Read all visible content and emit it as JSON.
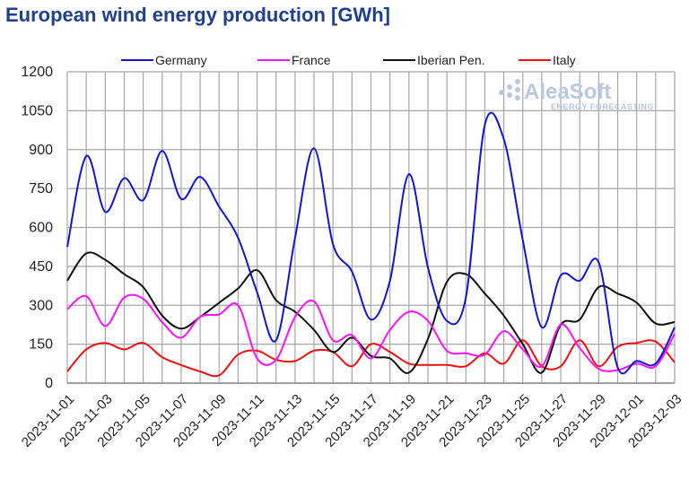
{
  "chart_data": {
    "type": "line",
    "title": "European wind energy production [GWh]",
    "ylim": [
      0,
      1200
    ],
    "yticks": [
      0,
      150,
      300,
      450,
      600,
      750,
      900,
      1050,
      1200
    ],
    "xlim": [
      "2023-11-01",
      "2023-12-03"
    ],
    "xtick_labels": [
      "2023-11-01",
      "2023-11-03",
      "2023-11-05",
      "2023-11-07",
      "2023-11-09",
      "2023-11-11",
      "2023-11-13",
      "2023-11-15",
      "2023-11-17",
      "2023-11-19",
      "2023-11-21",
      "2023-11-23",
      "2023-11-25",
      "2023-11-27",
      "2023-11-29",
      "2023-12-01",
      "2023-12-03"
    ],
    "grid": true,
    "legend_position": "top",
    "x": [
      "2023-11-01",
      "2023-11-02",
      "2023-11-03",
      "2023-11-04",
      "2023-11-05",
      "2023-11-06",
      "2023-11-07",
      "2023-11-08",
      "2023-11-09",
      "2023-11-10",
      "2023-11-11",
      "2023-11-12",
      "2023-11-13",
      "2023-11-14",
      "2023-11-15",
      "2023-11-16",
      "2023-11-17",
      "2023-11-18",
      "2023-11-19",
      "2023-11-20",
      "2023-11-21",
      "2023-11-22",
      "2023-11-23",
      "2023-11-24",
      "2023-11-25",
      "2023-11-26",
      "2023-11-27",
      "2023-11-28",
      "2023-11-29",
      "2023-11-30",
      "2023-12-01",
      "2023-12-02",
      "2023-12-03"
    ],
    "series": [
      {
        "name": "Germany",
        "color": "#1414d2",
        "values": [
          525,
          875,
          660,
          790,
          705,
          895,
          710,
          795,
          680,
          560,
          350,
          165,
          560,
          905,
          535,
          430,
          245,
          395,
          805,
          445,
          240,
          330,
          995,
          940,
          550,
          215,
          415,
          395,
          465,
          60,
          85,
          75,
          215
        ]
      },
      {
        "name": "France",
        "color": "#ff10ff",
        "values": [
          285,
          335,
          220,
          330,
          325,
          235,
          175,
          255,
          265,
          300,
          95,
          90,
          255,
          315,
          165,
          185,
          95,
          205,
          275,
          240,
          125,
          115,
          110,
          200,
          130,
          65,
          225,
          135,
          55,
          50,
          75,
          65,
          190
        ]
      },
      {
        "name": "Iberian Pen.",
        "color": "#111111",
        "values": [
          395,
          500,
          475,
          420,
          370,
          260,
          210,
          255,
          310,
          365,
          435,
          320,
          275,
          205,
          120,
          175,
          105,
          95,
          40,
          170,
          390,
          420,
          345,
          260,
          150,
          40,
          225,
          245,
          370,
          345,
          310,
          230,
          235
        ]
      },
      {
        "name": "Italy",
        "color": "#ee1111",
        "values": [
          45,
          130,
          155,
          130,
          155,
          100,
          70,
          45,
          30,
          110,
          125,
          90,
          85,
          125,
          120,
          65,
          150,
          120,
          75,
          70,
          70,
          65,
          115,
          75,
          165,
          65,
          65,
          165,
          65,
          140,
          155,
          160,
          80
        ]
      }
    ]
  },
  "watermark": {
    "brand": "AleaSoft",
    "tagline": "ENERGY FORECASTING"
  }
}
